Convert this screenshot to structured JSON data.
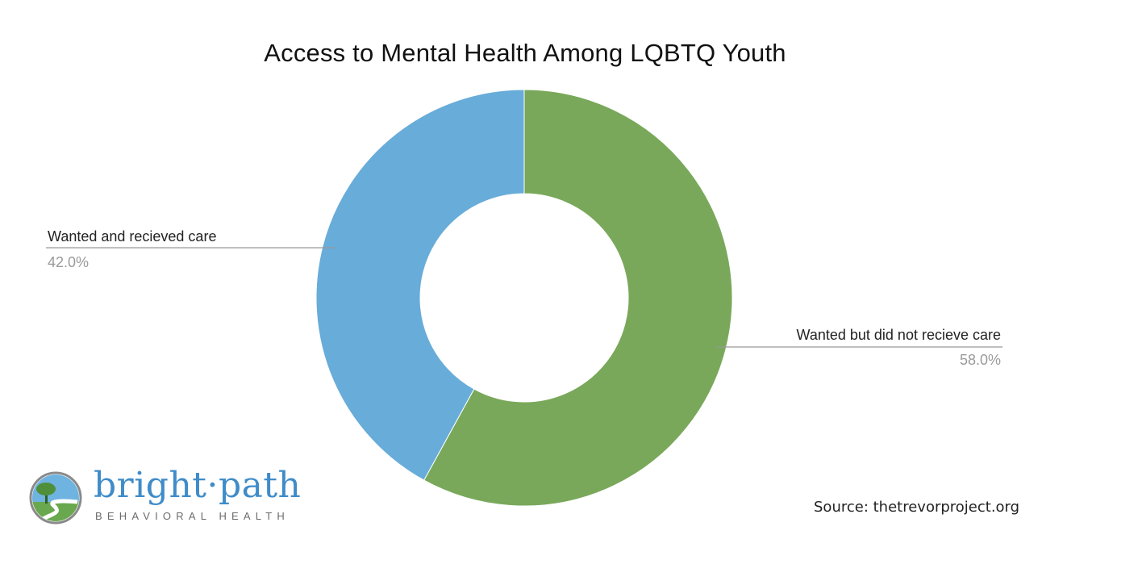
{
  "chart_data": {
    "type": "pie",
    "variant": "donut",
    "title": "Access to Mental Health Among LQBTQ Youth",
    "slices": [
      {
        "label": "Wanted but did not recieve care",
        "value": 58.0,
        "pct_label": "58.0%",
        "color": "#79a85a"
      },
      {
        "label": "Wanted and recieved care",
        "value": 42.0,
        "pct_label": "42.0%",
        "color": "#68acd9"
      }
    ],
    "legend": "none"
  },
  "source": "Source: thetrevorproject.org",
  "logo": {
    "brand_name": "bright·path",
    "brand_subtitle": "BEHAVIORAL HEALTH"
  }
}
